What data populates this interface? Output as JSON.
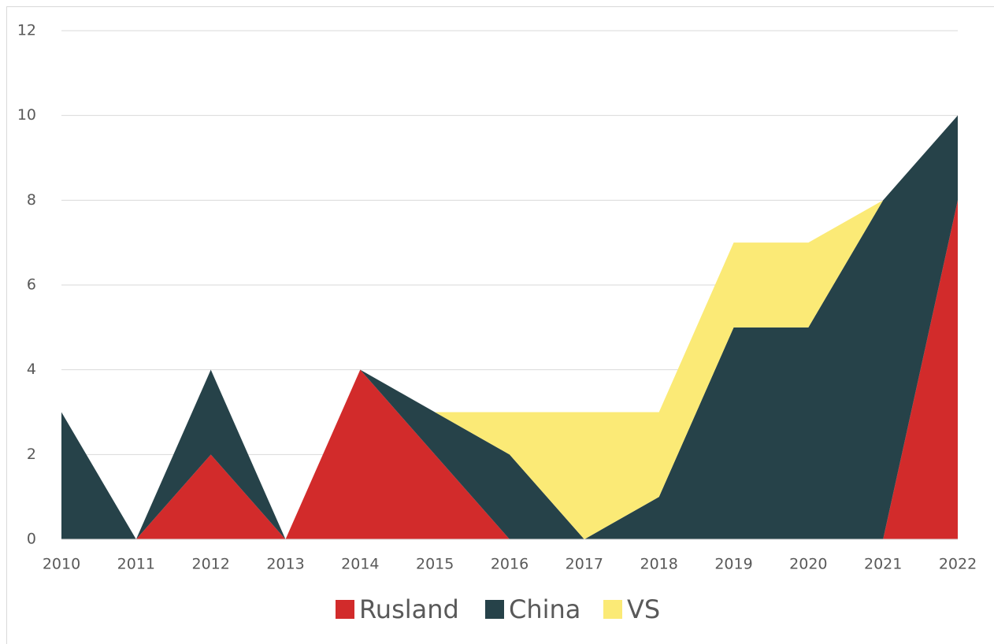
{
  "chart_data": {
    "type": "stacked_area",
    "categories": [
      "2010",
      "2011",
      "2012",
      "2013",
      "2014",
      "2015",
      "2016",
      "2017",
      "2018",
      "2019",
      "2020",
      "2021",
      "2022"
    ],
    "series": [
      {
        "name": "Rusland",
        "color": "#d22b2b",
        "values": [
          0,
          0,
          2,
          0,
          4,
          2,
          0,
          0,
          0,
          0,
          0,
          0,
          8
        ]
      },
      {
        "name": "China",
        "color": "#264249",
        "values": [
          3,
          0,
          2,
          0,
          0,
          1,
          2,
          0,
          1,
          5,
          5,
          8,
          2
        ]
      },
      {
        "name": "VS",
        "color": "#fbea76",
        "values": [
          0,
          0,
          0,
          0,
          0,
          0,
          1,
          3,
          2,
          2,
          2,
          0,
          0
        ]
      }
    ],
    "ylim": [
      0,
      12
    ],
    "yticks": [
      0,
      2,
      4,
      6,
      8,
      10,
      12
    ],
    "grid": true,
    "legend": "bottom"
  }
}
